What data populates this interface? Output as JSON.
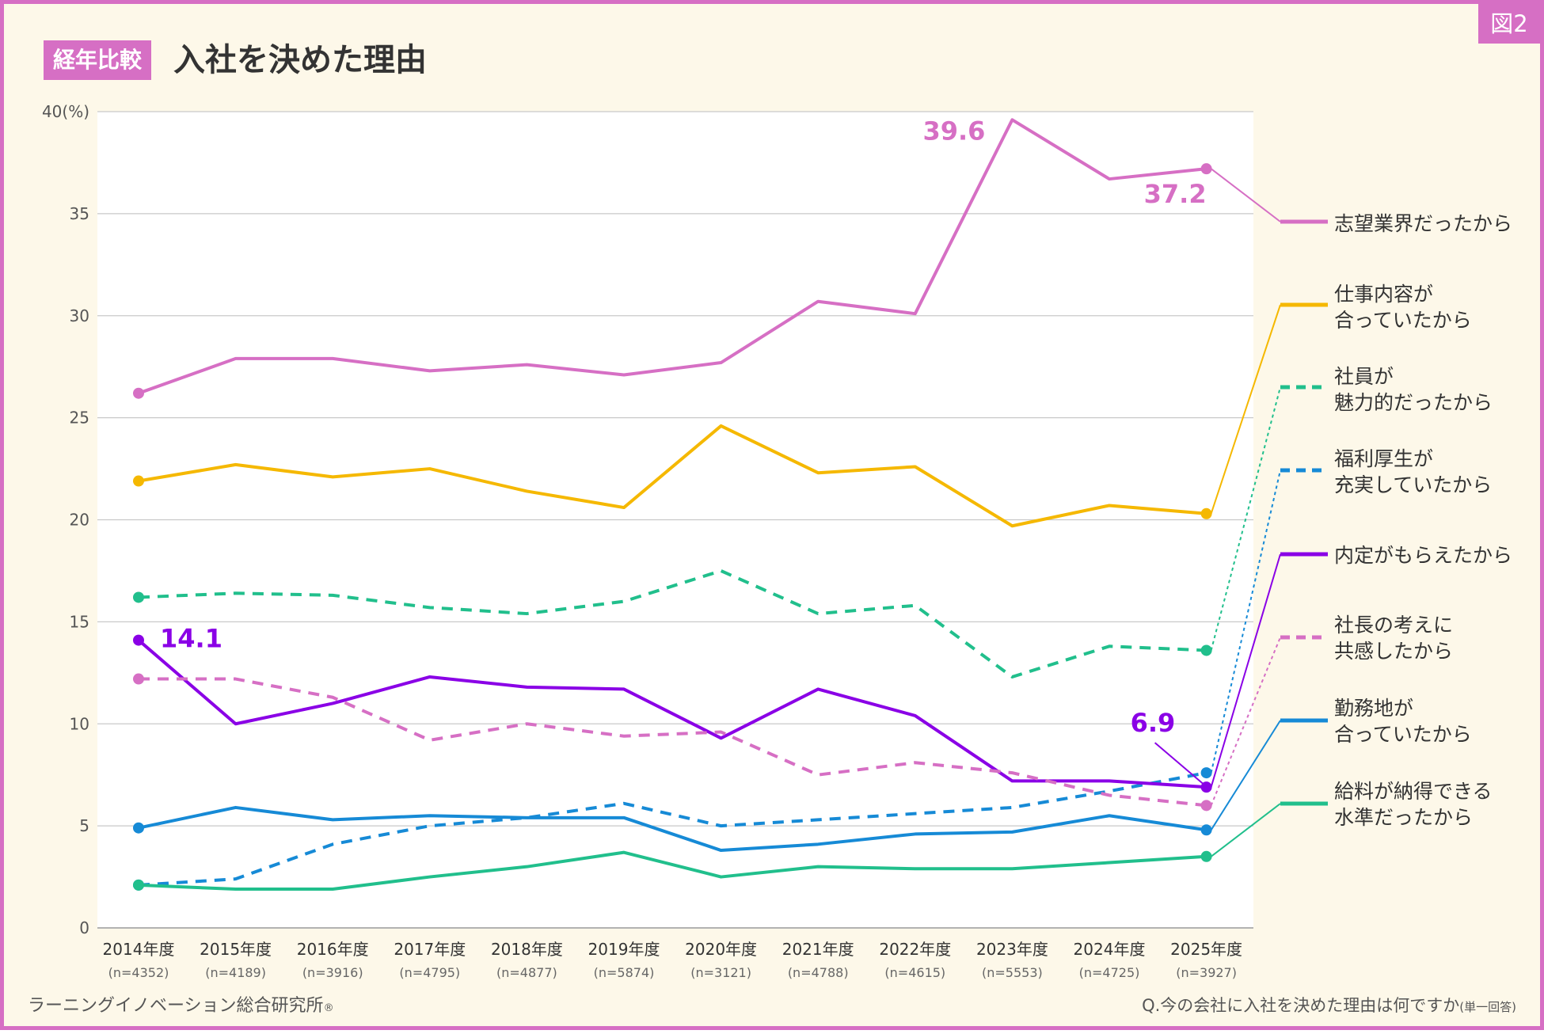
{
  "figure_badge": "図2",
  "header": {
    "tag": "経年比較",
    "title": "入社を決めた理由"
  },
  "footer": {
    "source": "ラーニングイノベーション総合研究所",
    "source_mark": "®",
    "question": "Q.今の会社に入社を決めた理由は何ですか",
    "question_note": "(単一回答)"
  },
  "chart_data": {
    "type": "line",
    "title": "入社を決めた理由",
    "ylim": [
      0,
      40
    ],
    "yticks": [
      "0",
      "5",
      "10",
      "15",
      "20",
      "25",
      "30",
      "35",
      "40(%)"
    ],
    "ytick_values": [
      0,
      5,
      10,
      15,
      20,
      25,
      30,
      35,
      40
    ],
    "categories": [
      "2014年度",
      "2015年度",
      "2016年度",
      "2017年度",
      "2018年度",
      "2019年度",
      "2020年度",
      "2021年度",
      "2022年度",
      "2023年度",
      "2024年度",
      "2025年度"
    ],
    "sample_sizes": [
      "(n=4352)",
      "(n=4189)",
      "(n=3916)",
      "(n=4795)",
      "(n=4877)",
      "(n=5874)",
      "(n=3121)",
      "(n=4788)",
      "(n=4615)",
      "(n=5553)",
      "(n=4725)",
      "(n=3927)"
    ],
    "grid": true,
    "series": [
      {
        "name": "志望業界だったから",
        "label_lines": [
          "志望業界だったから"
        ],
        "color": "#d66fc4",
        "style": "solid",
        "values": [
          26.2,
          27.9,
          27.9,
          27.3,
          27.6,
          27.1,
          27.7,
          30.7,
          30.1,
          39.6,
          36.7,
          37.2
        ]
      },
      {
        "name": "仕事内容が合っていたから",
        "label_lines": [
          "仕事内容が",
          "合っていたから"
        ],
        "color": "#f5b800",
        "style": "solid",
        "values": [
          21.9,
          22.7,
          22.1,
          22.5,
          21.4,
          20.6,
          24.6,
          22.3,
          22.6,
          19.7,
          20.7,
          20.3
        ]
      },
      {
        "name": "社員が魅力的だったから",
        "label_lines": [
          "社員が",
          "魅力的だったから"
        ],
        "color": "#21bf8c",
        "style": "dashed",
        "values": [
          16.2,
          16.4,
          16.3,
          15.7,
          15.4,
          16.0,
          17.5,
          15.4,
          15.8,
          12.3,
          13.8,
          13.6
        ]
      },
      {
        "name": "福利厚生が充実していたから",
        "label_lines": [
          "福利厚生が",
          "充実していたから"
        ],
        "color": "#168ad6",
        "style": "dashed",
        "values": [
          2.1,
          2.4,
          4.1,
          5.0,
          5.4,
          6.1,
          5.0,
          5.3,
          5.6,
          5.9,
          6.7,
          7.6
        ]
      },
      {
        "name": "内定がもらえたから",
        "label_lines": [
          "内定がもらえたから"
        ],
        "color": "#8a00e6",
        "style": "solid",
        "values": [
          14.1,
          10.0,
          11.0,
          12.3,
          11.8,
          11.7,
          9.3,
          11.7,
          10.4,
          7.2,
          7.2,
          6.9
        ]
      },
      {
        "name": "社長の考えに共感したから",
        "label_lines": [
          "社長の考えに",
          "共感したから"
        ],
        "color": "#d66fc4",
        "style": "dashed",
        "values": [
          12.2,
          12.2,
          11.3,
          9.2,
          10.0,
          9.4,
          9.6,
          7.5,
          8.1,
          7.6,
          6.5,
          6.0
        ]
      },
      {
        "name": "勤務地が合っていたから",
        "label_lines": [
          "勤務地が",
          "合っていたから"
        ],
        "color": "#168ad6",
        "style": "solid",
        "values": [
          4.9,
          5.9,
          5.3,
          5.5,
          5.4,
          5.4,
          3.8,
          4.1,
          4.6,
          4.7,
          5.5,
          4.8
        ]
      },
      {
        "name": "給料が納得できる水準だったから",
        "label_lines": [
          "給料が納得できる",
          "水準だったから"
        ],
        "color": "#21bf8c",
        "style": "solid",
        "values": [
          2.1,
          1.9,
          1.9,
          2.5,
          3.0,
          3.7,
          2.5,
          3.0,
          2.9,
          2.9,
          3.2,
          3.5
        ]
      }
    ],
    "annotations": [
      {
        "series": 0,
        "index": 9,
        "text": "39.6"
      },
      {
        "series": 0,
        "index": 11,
        "text": "37.2"
      },
      {
        "series": 4,
        "index": 0,
        "text": "14.1"
      },
      {
        "series": 4,
        "index": 11,
        "text": "6.9"
      }
    ]
  }
}
